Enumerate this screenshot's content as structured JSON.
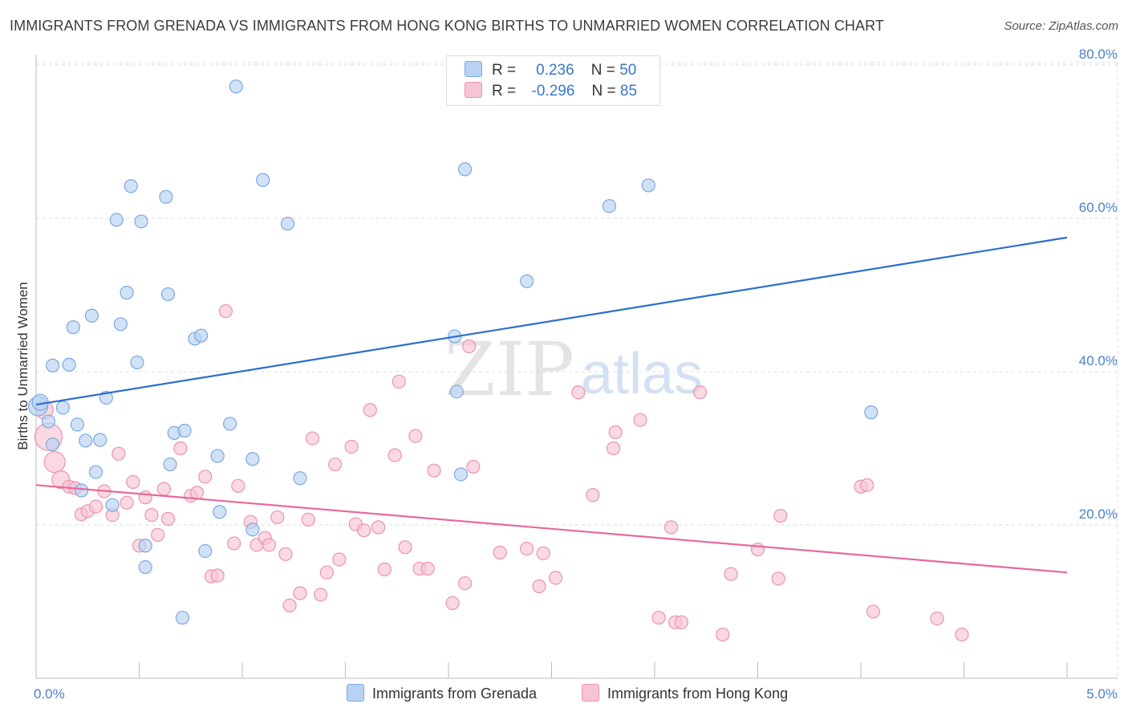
{
  "header": {
    "title": "IMMIGRANTS FROM GRENADA VS IMMIGRANTS FROM HONG KONG BIRTHS TO UNMARRIED WOMEN CORRELATION CHART",
    "source": "Source: ZipAtlas.com"
  },
  "watermark": {
    "zip": "ZIP",
    "atlas": "atlas"
  },
  "legend": {
    "grenada": {
      "r_label": "R =",
      "r_value": "0.236",
      "n_label": "N =",
      "n_value": "50"
    },
    "hongkong": {
      "r_label": "R =",
      "r_value": "-0.296",
      "n_label": "N =",
      "n_value": "85"
    }
  },
  "colors": {
    "grenada_fill": "#b8d2f3",
    "grenada_stroke": "#7aa8e2",
    "grenada_line": "#2c6fcb",
    "hongkong_fill": "#f7c4d3",
    "hongkong_stroke": "#eb92b0",
    "hongkong_line": "#e8689a",
    "tick_label": "#4a80c8",
    "grid": "#dcdcdc"
  },
  "chart_data": {
    "type": "scatter",
    "ylabel": "Births to Unmarried Women",
    "xlim": [
      0,
      5
    ],
    "ylim": [
      0,
      83
    ],
    "x_ticks": [
      {
        "value": 0,
        "label": "0.0%"
      },
      {
        "value": 5,
        "label": "5.0%"
      }
    ],
    "y_ticks": [
      {
        "value": 20,
        "label": "20.0%"
      },
      {
        "value": 40,
        "label": "40.0%"
      },
      {
        "value": 60,
        "label": "60.0%"
      },
      {
        "value": 80,
        "label": "80.0%"
      }
    ],
    "grid": true,
    "series": [
      {
        "name": "Immigrants from Grenada",
        "key": "grenada",
        "points": [
          [
            0.01,
            35.5
          ],
          [
            0.02,
            36.0
          ],
          [
            0.06,
            33.5
          ],
          [
            0.08,
            30.5
          ],
          [
            0.08,
            40.8
          ],
          [
            0.13,
            35.3
          ],
          [
            0.16,
            40.9
          ],
          [
            0.18,
            45.8
          ],
          [
            0.2,
            33.1
          ],
          [
            0.22,
            24.5
          ],
          [
            0.24,
            31.0
          ],
          [
            0.27,
            47.3
          ],
          [
            0.29,
            26.9
          ],
          [
            0.31,
            31.1
          ],
          [
            0.34,
            36.6
          ],
          [
            0.37,
            22.6
          ],
          [
            0.39,
            59.8
          ],
          [
            0.41,
            46.2
          ],
          [
            0.44,
            50.3
          ],
          [
            0.46,
            64.2
          ],
          [
            0.49,
            41.2
          ],
          [
            0.51,
            59.6
          ],
          [
            0.53,
            17.3
          ],
          [
            0.53,
            14.5
          ],
          [
            0.63,
            62.8
          ],
          [
            0.64,
            50.1
          ],
          [
            0.65,
            27.9
          ],
          [
            0.67,
            32.0
          ],
          [
            0.71,
            7.9
          ],
          [
            0.72,
            32.3
          ],
          [
            0.77,
            44.3
          ],
          [
            0.8,
            44.7
          ],
          [
            0.82,
            16.6
          ],
          [
            0.88,
            29.0
          ],
          [
            0.89,
            21.7
          ],
          [
            0.94,
            33.2
          ],
          [
            0.97,
            77.2
          ],
          [
            1.05,
            28.6
          ],
          [
            1.05,
            19.4
          ],
          [
            1.1,
            65.0
          ],
          [
            1.22,
            59.3
          ],
          [
            1.28,
            26.1
          ],
          [
            2.03,
            44.6
          ],
          [
            2.04,
            37.4
          ],
          [
            2.06,
            26.6
          ],
          [
            2.08,
            66.4
          ],
          [
            2.38,
            51.8
          ],
          [
            2.78,
            61.6
          ],
          [
            2.97,
            64.3
          ],
          [
            4.05,
            34.7
          ]
        ]
      },
      {
        "name": "Immigrants from Hong Kong",
        "key": "hongkong",
        "points": [
          [
            0.04,
            35.0
          ],
          [
            0.06,
            31.5
          ],
          [
            0.09,
            28.2
          ],
          [
            0.12,
            25.9
          ],
          [
            0.16,
            25.0
          ],
          [
            0.19,
            24.8
          ],
          [
            0.22,
            21.4
          ],
          [
            0.25,
            21.8
          ],
          [
            0.29,
            22.4
          ],
          [
            0.33,
            24.4
          ],
          [
            0.37,
            21.3
          ],
          [
            0.4,
            29.3
          ],
          [
            0.44,
            22.9
          ],
          [
            0.47,
            25.6
          ],
          [
            0.5,
            17.3
          ],
          [
            0.53,
            23.6
          ],
          [
            0.56,
            21.3
          ],
          [
            0.59,
            18.7
          ],
          [
            0.62,
            24.7
          ],
          [
            0.64,
            20.8
          ],
          [
            0.7,
            30.0
          ],
          [
            0.75,
            23.8
          ],
          [
            0.78,
            24.2
          ],
          [
            0.82,
            26.3
          ],
          [
            0.85,
            13.3
          ],
          [
            0.88,
            13.4
          ],
          [
            0.92,
            47.9
          ],
          [
            0.96,
            17.6
          ],
          [
            0.98,
            25.1
          ],
          [
            1.04,
            20.4
          ],
          [
            1.07,
            17.4
          ],
          [
            1.11,
            18.3
          ],
          [
            1.13,
            17.4
          ],
          [
            1.17,
            21.0
          ],
          [
            1.21,
            16.2
          ],
          [
            1.23,
            9.5
          ],
          [
            1.28,
            11.1
          ],
          [
            1.32,
            20.7
          ],
          [
            1.34,
            31.3
          ],
          [
            1.38,
            10.9
          ],
          [
            1.41,
            13.8
          ],
          [
            1.45,
            27.9
          ],
          [
            1.47,
            15.5
          ],
          [
            1.53,
            30.2
          ],
          [
            1.55,
            20.1
          ],
          [
            1.59,
            19.3
          ],
          [
            1.62,
            35.0
          ],
          [
            1.66,
            19.7
          ],
          [
            1.69,
            14.2
          ],
          [
            1.74,
            29.1
          ],
          [
            1.76,
            38.7
          ],
          [
            1.79,
            17.1
          ],
          [
            1.84,
            31.6
          ],
          [
            1.86,
            14.3
          ],
          [
            1.9,
            14.3
          ],
          [
            1.93,
            27.1
          ],
          [
            2.02,
            9.8
          ],
          [
            2.08,
            12.4
          ],
          [
            2.1,
            43.3
          ],
          [
            2.12,
            27.6
          ],
          [
            2.25,
            16.4
          ],
          [
            2.38,
            16.9
          ],
          [
            2.44,
            12.0
          ],
          [
            2.46,
            16.3
          ],
          [
            2.52,
            13.1
          ],
          [
            2.63,
            37.3
          ],
          [
            2.7,
            23.9
          ],
          [
            2.8,
            30.0
          ],
          [
            2.81,
            32.1
          ],
          [
            2.93,
            33.7
          ],
          [
            3.02,
            7.9
          ],
          [
            3.08,
            19.7
          ],
          [
            3.1,
            7.3
          ],
          [
            3.13,
            7.3
          ],
          [
            3.22,
            37.3
          ],
          [
            3.33,
            5.7
          ],
          [
            3.37,
            13.6
          ],
          [
            3.5,
            16.8
          ],
          [
            3.6,
            13.0
          ],
          [
            3.61,
            21.2
          ],
          [
            4.0,
            25.0
          ],
          [
            4.03,
            25.2
          ],
          [
            4.06,
            8.7
          ],
          [
            4.37,
            7.8
          ],
          [
            4.49,
            5.7
          ]
        ]
      }
    ],
    "trend_lines": [
      {
        "series": "grenada",
        "x": [
          0,
          5
        ],
        "y": [
          35.7,
          57.5
        ]
      },
      {
        "series": "hongkong",
        "x": [
          0,
          5
        ],
        "y": [
          25.2,
          13.8
        ]
      }
    ]
  },
  "bottom_legend": {
    "grenada_label": "Immigrants from Grenada",
    "hongkong_label": "Immigrants from Hong Kong"
  }
}
